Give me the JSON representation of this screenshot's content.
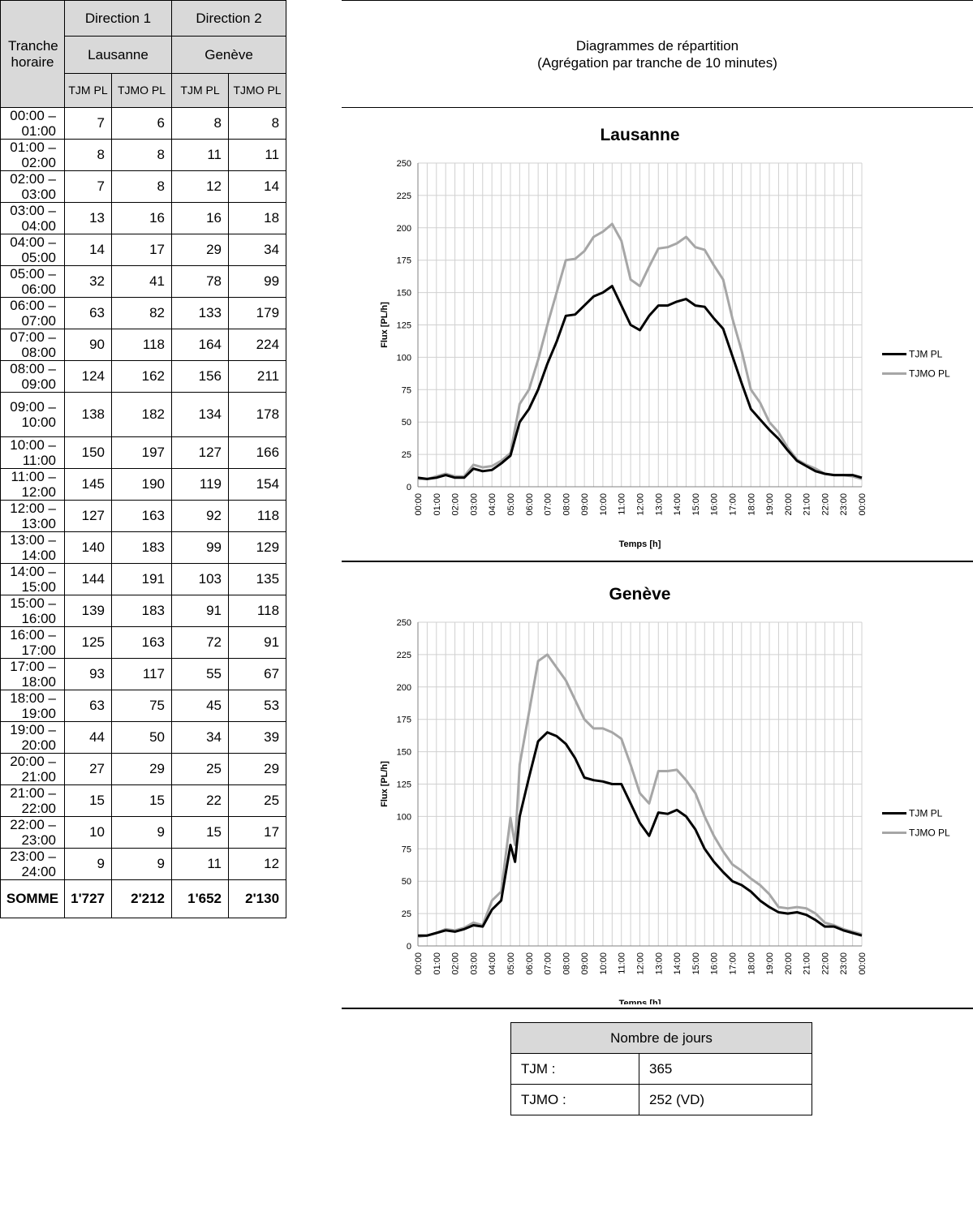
{
  "table": {
    "header": {
      "col1": "Tranche horaire",
      "dir1": "Direction 1",
      "dir1_city": "Lausanne",
      "dir2": "Direction 2",
      "dir2_city": "Genève",
      "sub": [
        "TJM PL",
        "TJMO PL",
        "TJM PL",
        "TJMO PL"
      ]
    },
    "rows": [
      {
        "t": "00:00 – 01:00",
        "v": [
          "7",
          "6",
          "8",
          "8"
        ]
      },
      {
        "t": "01:00 – 02:00",
        "v": [
          "8",
          "8",
          "11",
          "11"
        ]
      },
      {
        "t": "02:00 – 03:00",
        "v": [
          "7",
          "8",
          "12",
          "14"
        ]
      },
      {
        "t": "03:00 – 04:00",
        "v": [
          "13",
          "16",
          "16",
          "18"
        ]
      },
      {
        "t": "04:00 – 05:00",
        "v": [
          "14",
          "17",
          "29",
          "34"
        ]
      },
      {
        "t": "05:00 – 06:00",
        "v": [
          "32",
          "41",
          "78",
          "99"
        ]
      },
      {
        "t": "06:00 – 07:00",
        "v": [
          "63",
          "82",
          "133",
          "179"
        ]
      },
      {
        "t": "07:00 – 08:00",
        "v": [
          "90",
          "118",
          "164",
          "224"
        ]
      },
      {
        "t": "08:00 – 09:00",
        "v": [
          "124",
          "162",
          "156",
          "211"
        ]
      },
      {
        "t": "09:00 – 10:00",
        "v": [
          "138",
          "182",
          "134",
          "178"
        ]
      },
      {
        "t": "10:00 – 11:00",
        "v": [
          "150",
          "197",
          "127",
          "166"
        ]
      },
      {
        "t": "11:00 – 12:00",
        "v": [
          "145",
          "190",
          "119",
          "154"
        ]
      },
      {
        "t": "12:00 – 13:00",
        "v": [
          "127",
          "163",
          "92",
          "118"
        ]
      },
      {
        "t": "13:00 – 14:00",
        "v": [
          "140",
          "183",
          "99",
          "129"
        ]
      },
      {
        "t": "14:00 – 15:00",
        "v": [
          "144",
          "191",
          "103",
          "135"
        ]
      },
      {
        "t": "15:00 – 16:00",
        "v": [
          "139",
          "183",
          "91",
          "118"
        ]
      },
      {
        "t": "16:00 – 17:00",
        "v": [
          "125",
          "163",
          "72",
          "91"
        ]
      },
      {
        "t": "17:00 – 18:00",
        "v": [
          "93",
          "117",
          "55",
          "67"
        ]
      },
      {
        "t": "18:00 – 19:00",
        "v": [
          "63",
          "75",
          "45",
          "53"
        ]
      },
      {
        "t": "19:00 – 20:00",
        "v": [
          "44",
          "50",
          "34",
          "39"
        ]
      },
      {
        "t": "20:00 – 21:00",
        "v": [
          "27",
          "29",
          "25",
          "29"
        ]
      },
      {
        "t": "21:00 – 22:00",
        "v": [
          "15",
          "15",
          "22",
          "25"
        ]
      },
      {
        "t": "22:00 – 23:00",
        "v": [
          "10",
          "9",
          "15",
          "17"
        ]
      },
      {
        "t": "23:00 – 24:00",
        "v": [
          "9",
          "9",
          "11",
          "12"
        ]
      }
    ],
    "total": {
      "label": "SOMME",
      "v": [
        "1'727",
        "2'212",
        "1'652",
        "2'130"
      ]
    }
  },
  "diagrams_header": {
    "line1": "Diagrammes de répartition",
    "line2": "(Agrégation par tranche de 10 minutes)"
  },
  "nombre_de_jours": {
    "title": "Nombre de jours",
    "rows": [
      {
        "label": "TJM :",
        "value": "365"
      },
      {
        "label": "TJMO :",
        "value": "252 (VD)"
      }
    ]
  },
  "colors": {
    "tjm": "#000000",
    "tjmo": "#a6a6a6",
    "header_bg": "#d9d9d9"
  },
  "chart_data": [
    {
      "type": "line",
      "title": "Lausanne",
      "xlabel": "Temps [h]",
      "ylabel": "Flux [PL/h]",
      "ylim": [
        0,
        250
      ],
      "yticks": [
        0,
        25,
        50,
        75,
        100,
        125,
        150,
        175,
        200,
        225,
        250
      ],
      "x_tick_labels": [
        "00:00",
        "01:00",
        "02:00",
        "03:00",
        "04:00",
        "05:00",
        "06:00",
        "07:00",
        "08:00",
        "09:00",
        "10:00",
        "11:00",
        "12:00",
        "13:00",
        "14:00",
        "15:00",
        "16:00",
        "17:00",
        "18:00",
        "19:00",
        "20:00",
        "21:00",
        "22:00",
        "23:00",
        "00:00"
      ],
      "grid": true,
      "legend": "right",
      "x": [
        "00:00",
        "00:30",
        "01:00",
        "01:30",
        "02:00",
        "02:30",
        "03:00",
        "03:30",
        "04:00",
        "04:30",
        "05:00",
        "05:30",
        "06:00",
        "06:30",
        "07:00",
        "07:30",
        "08:00",
        "08:30",
        "09:00",
        "09:30",
        "10:00",
        "10:30",
        "11:00",
        "11:30",
        "12:00",
        "12:30",
        "13:00",
        "13:30",
        "14:00",
        "14:30",
        "15:00",
        "15:30",
        "16:00",
        "16:30",
        "17:00",
        "17:30",
        "18:00",
        "18:30",
        "19:00",
        "19:30",
        "20:00",
        "20:30",
        "21:00",
        "21:30",
        "22:00",
        "22:30",
        "23:00",
        "23:30",
        "24:00"
      ],
      "series": [
        {
          "name": "TJM PL",
          "values": [
            7,
            6,
            7,
            9,
            7,
            7,
            14,
            12,
            13,
            18,
            24,
            50,
            60,
            75,
            95,
            112,
            132,
            133,
            140,
            147,
            150,
            155,
            140,
            125,
            121,
            132,
            140,
            140,
            143,
            145,
            140,
            139,
            130,
            122,
            101,
            80,
            60,
            52,
            44,
            37,
            28,
            20,
            16,
            12,
            10,
            9,
            9,
            9,
            7
          ]
        },
        {
          "name": "TJMO PL",
          "values": [
            6,
            6,
            8,
            10,
            8,
            8,
            17,
            15,
            16,
            20,
            26,
            64,
            75,
            98,
            125,
            150,
            175,
            176,
            182,
            193,
            197,
            203,
            190,
            160,
            155,
            170,
            184,
            185,
            188,
            193,
            185,
            183,
            171,
            160,
            130,
            105,
            75,
            65,
            50,
            42,
            30,
            21,
            17,
            14,
            10,
            9,
            9,
            8,
            6
          ]
        }
      ]
    },
    {
      "type": "line",
      "title": "Genève",
      "xlabel": "Temps [h]",
      "ylabel": "Flux [PL/h]",
      "ylim": [
        0,
        250
      ],
      "yticks": [
        0,
        25,
        50,
        75,
        100,
        125,
        150,
        175,
        200,
        225,
        250
      ],
      "x_tick_labels": [
        "00:00",
        "01:00",
        "02:00",
        "03:00",
        "04:00",
        "05:00",
        "06:00",
        "07:00",
        "08:00",
        "09:00",
        "10:00",
        "11:00",
        "12:00",
        "13:00",
        "14:00",
        "15:00",
        "16:00",
        "17:00",
        "18:00",
        "19:00",
        "20:00",
        "21:00",
        "22:00",
        "23:00",
        "00:00"
      ],
      "grid": true,
      "legend": "right",
      "x": [
        "00:00",
        "00:30",
        "01:00",
        "01:30",
        "02:00",
        "02:30",
        "03:00",
        "03:30",
        "04:00",
        "04:30",
        "05:00",
        "05:15",
        "05:30",
        "06:00",
        "06:30",
        "07:00",
        "07:30",
        "08:00",
        "08:30",
        "09:00",
        "09:30",
        "10:00",
        "10:30",
        "11:00",
        "11:30",
        "12:00",
        "12:30",
        "13:00",
        "13:30",
        "14:00",
        "14:30",
        "15:00",
        "15:30",
        "16:00",
        "16:30",
        "17:00",
        "17:30",
        "18:00",
        "18:30",
        "19:00",
        "19:30",
        "20:00",
        "20:30",
        "21:00",
        "21:30",
        "22:00",
        "22:30",
        "23:00",
        "23:30",
        "24:00"
      ],
      "series": [
        {
          "name": "TJM PL",
          "values": [
            8,
            8,
            10,
            12,
            11,
            13,
            16,
            15,
            28,
            35,
            78,
            65,
            100,
            130,
            158,
            165,
            162,
            156,
            145,
            130,
            128,
            127,
            125,
            125,
            110,
            95,
            85,
            103,
            102,
            105,
            100,
            90,
            75,
            65,
            57,
            50,
            47,
            42,
            35,
            30,
            26,
            25,
            26,
            24,
            20,
            15,
            15,
            12,
            10,
            8
          ]
        },
        {
          "name": "TJMO PL",
          "values": [
            7,
            8,
            10,
            13,
            12,
            14,
            18,
            16,
            35,
            42,
            99,
            78,
            140,
            180,
            220,
            225,
            215,
            205,
            190,
            175,
            168,
            168,
            165,
            160,
            140,
            118,
            110,
            135,
            135,
            136,
            128,
            118,
            100,
            85,
            73,
            63,
            58,
            52,
            47,
            40,
            30,
            29,
            30,
            29,
            25,
            18,
            16,
            13,
            11,
            9
          ]
        }
      ]
    }
  ]
}
